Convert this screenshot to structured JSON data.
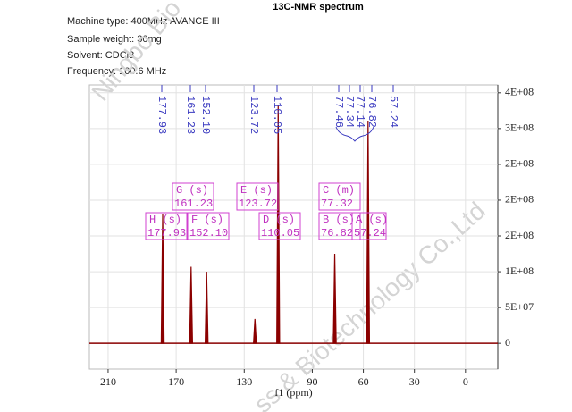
{
  "chart_data": {
    "type": "nmr",
    "title": "13C-NMR spectrum",
    "info": [
      "Machine type: 400MHz AVANCE III",
      "Sample weight: 30mg",
      "Solvent: CDCl3",
      "Frequency: 100.6 MHz"
    ],
    "watermark": [
      "Ningbo Bio",
      "ss & Biotechnology Co.,Ltd"
    ],
    "x_label": "f1 (ppm)",
    "x": [
      177.93,
      161.23,
      152.1,
      123.72,
      110.05,
      76.82,
      57.24
    ],
    "values": [
      181000000,
      107000000,
      100000000,
      34000000,
      333000000,
      125000000,
      311000000
    ],
    "color": "#8b0000",
    "shift_labels": [
      "177.93",
      "161.23",
      "152.10",
      "123.72",
      "110.05",
      "77.46",
      "77.34",
      "77.14",
      "76.82",
      "57.24"
    ],
    "multiplets": [
      {
        "label": "H (s)",
        "shift": "177.93"
      },
      {
        "label": "G (s)",
        "shift": "161.23"
      },
      {
        "label": "F (s)",
        "shift": "152.10"
      },
      {
        "label": "E (s)",
        "shift": "123.72"
      },
      {
        "label": "D (s)",
        "shift": "110.05"
      },
      {
        "label": "C (m)",
        "shift": "77.32"
      },
      {
        "label": "B (s)",
        "shift": "76.82"
      },
      {
        "label": "A (s)",
        "shift": "57.24"
      }
    ],
    "xlim": [
      221,
      -19
    ],
    "xticks": [
      210,
      170,
      130,
      90,
      60,
      30,
      0
    ],
    "ylim": [
      -36000000,
      361000000
    ],
    "yticks": [
      {
        "value": 350000000,
        "label": "4E+08"
      },
      {
        "value": 300000000,
        "label": "3E+08"
      },
      {
        "value": 250000000,
        "label": "2E+08"
      },
      {
        "value": 200000000,
        "label": "2E+08"
      },
      {
        "value": 150000000,
        "label": "2E+08"
      },
      {
        "value": 100000000,
        "label": "1E+08"
      },
      {
        "value": 50000000,
        "label": "5E+07"
      },
      0
    ],
    "grid": true
  }
}
